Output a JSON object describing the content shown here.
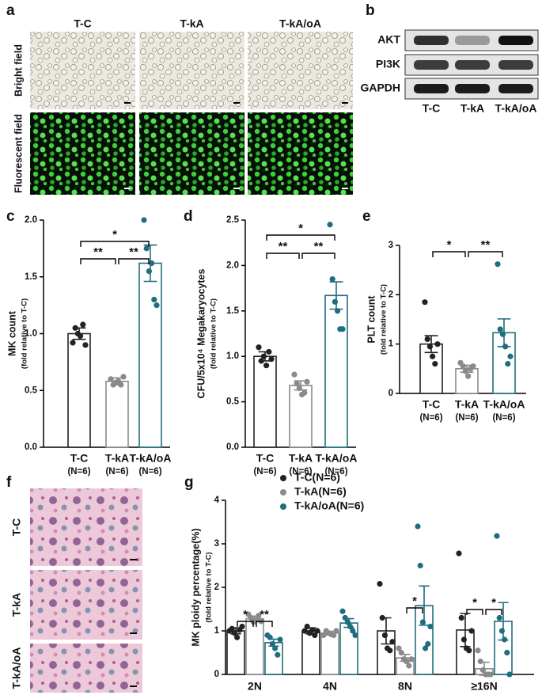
{
  "panel_a": {
    "label": "a",
    "columns": [
      "T-C",
      "T-kA",
      "T-kA/oA"
    ],
    "rows": [
      "Bright field",
      "Fluorescent field"
    ]
  },
  "panel_b": {
    "label": "b",
    "proteins": [
      "AKT",
      "PI3K",
      "GAPDH"
    ],
    "groups": [
      "T-C",
      "T-kA",
      "T-kA/oA"
    ]
  },
  "panel_f": {
    "label": "f",
    "rows": [
      "T-C",
      "T-kA",
      "T-kA/oA"
    ]
  },
  "chart_data": [
    {
      "panel_label": "c",
      "type": "bar",
      "ylabel": "MK  count",
      "ylabel_note": "(fold relative to T-C)",
      "categories": [
        "T-C",
        "T-kA",
        "T-kA/oA"
      ],
      "sample_sizes": [
        "(N=6)",
        "(N=6)",
        "(N=6)"
      ],
      "colors": [
        "#222222",
        "#8a8a8a",
        "#1f6e7f"
      ],
      "values": [
        1.0,
        0.58,
        1.62
      ],
      "errors": [
        0.05,
        0.03,
        0.16
      ],
      "points": [
        [
          0.92,
          1.05,
          1.0,
          0.98,
          1.08,
          0.9
        ],
        [
          0.6,
          0.55,
          0.57,
          0.58,
          0.55,
          0.62
        ],
        [
          2.0,
          1.75,
          1.55,
          1.62,
          1.3,
          1.25
        ]
      ],
      "ylim": [
        0,
        2
      ],
      "yticks": [
        {
          "value": 0,
          "label": "0.0"
        },
        0.5,
        {
          "value": 1,
          "label": "1.0"
        },
        1.5,
        {
          "value": 2,
          "label": "2.0"
        }
      ],
      "significance": [
        {
          "groups": [
            "T-C",
            "T-kA"
          ],
          "label": "**"
        },
        {
          "groups": [
            "T-kA",
            "T-kA/oA"
          ],
          "label": "**"
        },
        {
          "groups": [
            "T-C",
            "T-kA/oA"
          ],
          "label": "*"
        }
      ]
    },
    {
      "panel_label": "d",
      "type": "bar",
      "ylabel": "CFU/5x10⁴ Megakaryocytes",
      "ylabel_note": "(fold relative to T-C)",
      "categories": [
        "T-C",
        "T-kA",
        "T-kA/oA"
      ],
      "sample_sizes": [
        "(N=6)",
        "(N=6)",
        "(N=6)"
      ],
      "colors": [
        "#222222",
        "#8a8a8a",
        "#1f6e7f"
      ],
      "values": [
        1.0,
        0.68,
        1.67
      ],
      "errors": [
        0.05,
        0.05,
        0.15
      ],
      "points": [
        [
          1.1,
          0.95,
          1.0,
          0.9,
          1.05,
          0.97
        ],
        [
          0.8,
          0.7,
          0.65,
          0.58,
          0.6,
          0.72
        ],
        [
          2.45,
          1.85,
          1.6,
          1.5,
          1.3,
          1.3
        ]
      ],
      "ylim": [
        0,
        2.5
      ],
      "yticks": [
        {
          "value": 0,
          "label": "0.0"
        },
        0.5,
        {
          "value": 1,
          "label": "1.0"
        },
        1.5,
        {
          "value": 2,
          "label": "2.0"
        },
        2.5
      ],
      "significance": [
        {
          "groups": [
            "T-C",
            "T-kA"
          ],
          "label": "**"
        },
        {
          "groups": [
            "T-kA",
            "T-kA/oA"
          ],
          "label": "**"
        },
        {
          "groups": [
            "T-C",
            "T-kA/oA"
          ],
          "label": "*"
        }
      ]
    },
    {
      "panel_label": "e",
      "type": "bar",
      "ylabel": "PLT count",
      "ylabel_note": "(fold relative to T-C)",
      "categories": [
        "T-C",
        "T-kA",
        "T-kA/oA"
      ],
      "sample_sizes": [
        "(N=6)",
        "(N=6)",
        "(N=6)"
      ],
      "colors": [
        "#222222",
        "#8a8a8a",
        "#1f6e7f"
      ],
      "values": [
        1.0,
        0.5,
        1.23
      ],
      "errors": [
        0.17,
        0.07,
        0.28
      ],
      "points": [
        [
          1.85,
          1.1,
          0.95,
          0.75,
          0.6,
          1.0
        ],
        [
          0.62,
          0.55,
          0.45,
          0.35,
          0.5,
          0.55
        ],
        [
          2.62,
          1.3,
          1.2,
          0.95,
          0.6,
          0.75
        ]
      ],
      "ylim": [
        0,
        3
      ],
      "yticks": [
        0,
        1,
        2,
        3
      ],
      "significance": [
        {
          "groups": [
            "T-C",
            "T-kA"
          ],
          "label": "*"
        },
        {
          "groups": [
            "T-kA",
            "T-kA/oA"
          ],
          "label": "**"
        }
      ]
    },
    {
      "panel_label": "g",
      "type": "grouped_bar",
      "ylabel": "MK ploidy percentage(%)",
      "ylabel_note": "(fold relative to T-C)",
      "categories": [
        "2N",
        "4N",
        "8N",
        "≥16N"
      ],
      "series": [
        {
          "name": "T-C(N=6)",
          "color": "#222222",
          "values": [
            1.0,
            1.0,
            1.0,
            1.02
          ],
          "errors": [
            0.07,
            0.07,
            0.3,
            0.38
          ],
          "points": [
            [
              1.0,
              1.05,
              0.95,
              0.85,
              1.02,
              1.1
            ],
            [
              1.0,
              1.1,
              0.95,
              1.02,
              0.9,
              1.0
            ],
            [
              2.08,
              1.3,
              0.9,
              0.6,
              0.55,
              0.75
            ],
            [
              2.78,
              1.3,
              0.8,
              0.6,
              0.55,
              1.0
            ]
          ]
        },
        {
          "name": "T-kA(N=6)",
          "color": "#8a8a8a",
          "values": [
            1.28,
            0.95,
            0.38,
            0.13
          ],
          "errors": [
            0.06,
            0.04,
            0.08,
            0.15
          ],
          "points": [
            [
              1.38,
              1.3,
              1.2,
              1.25,
              1.35,
              1.22
            ],
            [
              0.9,
              1.0,
              0.95,
              0.92,
              0.9,
              1.0
            ],
            [
              0.6,
              0.5,
              0.35,
              0.3,
              0.2,
              0.35
            ],
            [
              0.55,
              0.3,
              0.1,
              0,
              0,
              0
            ]
          ]
        },
        {
          "name": "T-kA/oA(N=6)",
          "color": "#1f6e7f",
          "values": [
            0.73,
            1.18,
            1.58,
            1.22
          ],
          "errors": [
            0.08,
            0.1,
            0.45,
            0.43
          ],
          "points": [
            [
              0.9,
              0.85,
              0.7,
              0.6,
              0.45,
              0.8
            ],
            [
              1.45,
              1.3,
              1.2,
              1.1,
              1.0,
              0.9
            ],
            [
              3.4,
              2.5,
              1.2,
              0.6,
              0.7,
              1.1
            ],
            [
              3.18,
              1.3,
              1.0,
              0.8,
              0.5,
              0
            ]
          ]
        }
      ],
      "ylim": [
        0,
        4
      ],
      "yticks": [
        0,
        1,
        2,
        3,
        4
      ],
      "significance": [
        {
          "category": "2N",
          "groups": [
            "T-C(N=6)",
            "T-kA(N=6)"
          ],
          "label": "*"
        },
        {
          "category": "2N",
          "groups": [
            "T-kA(N=6)",
            "T-kA/oA(N=6)"
          ],
          "label": "**"
        },
        {
          "category": "8N",
          "groups": [
            "T-kA(N=6)",
            "T-kA/oA(N=6)"
          ],
          "label": "*"
        },
        {
          "category": "≥16N",
          "groups": [
            "T-C(N=6)",
            "T-kA(N=6)"
          ],
          "label": "*"
        },
        {
          "category": "≥16N",
          "groups": [
            "T-kA(N=6)",
            "T-kA/oA(N=6)"
          ],
          "label": "*"
        }
      ]
    }
  ]
}
